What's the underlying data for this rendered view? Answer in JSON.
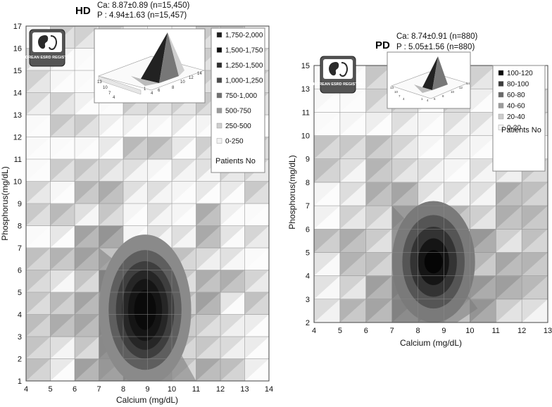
{
  "chart_data": [
    {
      "type": "heatmap",
      "title": "HD",
      "stats": [
        "Ca: 8.87±0.89 (n=15,450)",
        "P : 4.94±1.63 (n=15,457)"
      ],
      "xlabel": "Calcium (mg/dL)",
      "ylabel": "Phosphorus(mg/dL)",
      "xlim": [
        4,
        14
      ],
      "ylim": [
        1,
        17
      ],
      "xticks": [
        4,
        5,
        6,
        7,
        8,
        9,
        10,
        11,
        12,
        13,
        14
      ],
      "yticks": [
        1,
        2,
        3,
        4,
        5,
        6,
        7,
        8,
        9,
        10,
        11,
        12,
        13,
        14,
        15,
        16,
        17
      ],
      "legend_title": "Patients No",
      "legend": [
        "1,750-2,000",
        "1,500-1,750",
        "1,250-1,500",
        "1,000-1,250",
        "750-1,000",
        "500-750",
        "250-500",
        "0-250"
      ],
      "legend_colors": [
        "#1e1e1e",
        "#0d0d0d",
        "#2e2e2e",
        "#4a4a4a",
        "#707070",
        "#9a9a9a",
        "#cfcfcf",
        "#f2f2f2"
      ],
      "peak": {
        "x": 8.9,
        "y": 4.2
      },
      "inset_ticks": [
        "13",
        "10",
        "7",
        "4",
        "1",
        "4",
        "6",
        "8",
        "10",
        "12",
        "14"
      ],
      "logo_text": "KOREAN ESRD REGISTRY"
    },
    {
      "type": "heatmap",
      "title": "PD",
      "stats": [
        "Ca: 8.74±0.91 (n=880)",
        "P : 5.05±1.56 (n=880)"
      ],
      "xlabel": "Calcium (mg/dL)",
      "ylabel": "Phosphorus(mg/dL)",
      "xlim": [
        4,
        13
      ],
      "ylim": [
        2,
        15
      ],
      "xticks": [
        4,
        5,
        6,
        7,
        8,
        9,
        10,
        11,
        12,
        13
      ],
      "yticks": [
        2,
        3,
        4,
        5,
        6,
        7,
        8,
        9,
        10,
        11,
        13,
        15
      ],
      "legend_title": "Patients No",
      "legend": [
        "100-120",
        "80-100",
        "60-80",
        "40-60",
        "20-40",
        "0-20"
      ],
      "legend_colors": [
        "#0a0a0a",
        "#3a3a3a",
        "#6a6a6a",
        "#9c9c9c",
        "#cdcdcd",
        "#f4f4f4"
      ],
      "peak": {
        "x": 8.6,
        "y": 4.2
      },
      "inset_ticks": [
        "13",
        "10",
        "7",
        "4",
        "1",
        "4",
        "6",
        "8",
        "10",
        "12",
        "14"
      ],
      "logo_text": "KOREAN ESRD REGISTRY"
    }
  ]
}
